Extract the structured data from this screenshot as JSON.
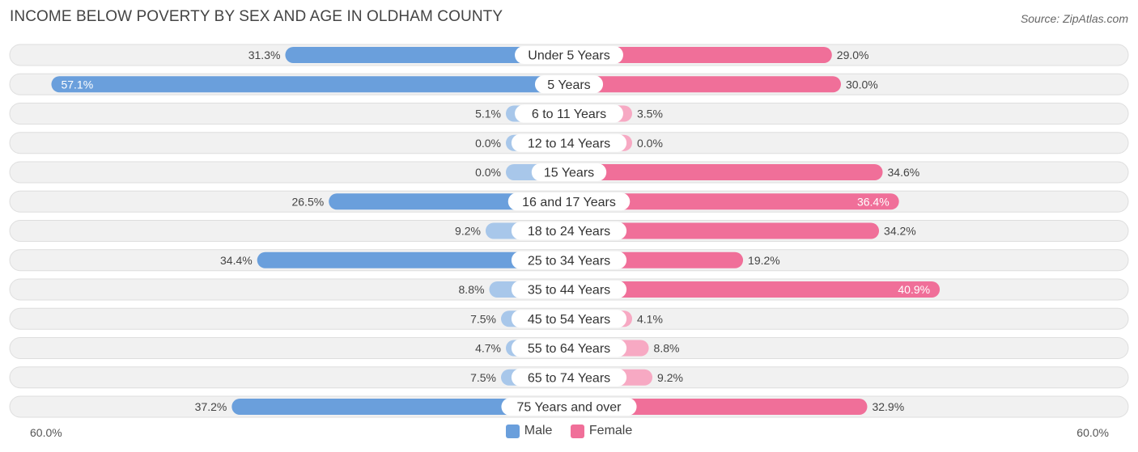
{
  "title": "INCOME BELOW POVERTY BY SEX AND AGE IN OLDHAM COUNTY",
  "source": "Source: ZipAtlas.com",
  "colors": {
    "male": "#6a9fdc",
    "male_light": "#a8c7ea",
    "female": "#f06f99",
    "female_light": "#f7a9c3"
  },
  "chart_data": {
    "type": "bar",
    "orientation": "horizontal-diverging",
    "title": "INCOME BELOW POVERTY BY SEX AND AGE IN OLDHAM COUNTY",
    "categories": [
      "Under 5 Years",
      "5 Years",
      "6 to 11 Years",
      "12 to 14 Years",
      "15 Years",
      "16 and 17 Years",
      "18 to 24 Years",
      "25 to 34 Years",
      "35 to 44 Years",
      "45 to 54 Years",
      "55 to 64 Years",
      "65 to 74 Years",
      "75 Years and over"
    ],
    "series": [
      {
        "name": "Male",
        "values": [
          31.3,
          57.1,
          5.1,
          0.0,
          0.0,
          26.5,
          9.2,
          34.4,
          8.8,
          7.5,
          4.7,
          7.5,
          37.2
        ],
        "labels": [
          "31.3%",
          "57.1%",
          "5.1%",
          "0.0%",
          "0.0%",
          "26.5%",
          "9.2%",
          "34.4%",
          "8.8%",
          "7.5%",
          "4.7%",
          "7.5%",
          "37.2%"
        ]
      },
      {
        "name": "Female",
        "values": [
          29.0,
          30.0,
          3.5,
          0.0,
          34.6,
          36.4,
          34.2,
          19.2,
          40.9,
          4.1,
          8.8,
          9.2,
          32.9
        ],
        "labels": [
          "29.0%",
          "30.0%",
          "3.5%",
          "0.0%",
          "34.6%",
          "36.4%",
          "34.2%",
          "19.2%",
          "40.9%",
          "4.1%",
          "8.8%",
          "9.2%",
          "32.9%"
        ]
      }
    ],
    "xlim": [
      -60,
      60
    ],
    "axis_left_label": "60.0%",
    "axis_right_label": "60.0%",
    "legend": [
      "Male",
      "Female"
    ]
  }
}
